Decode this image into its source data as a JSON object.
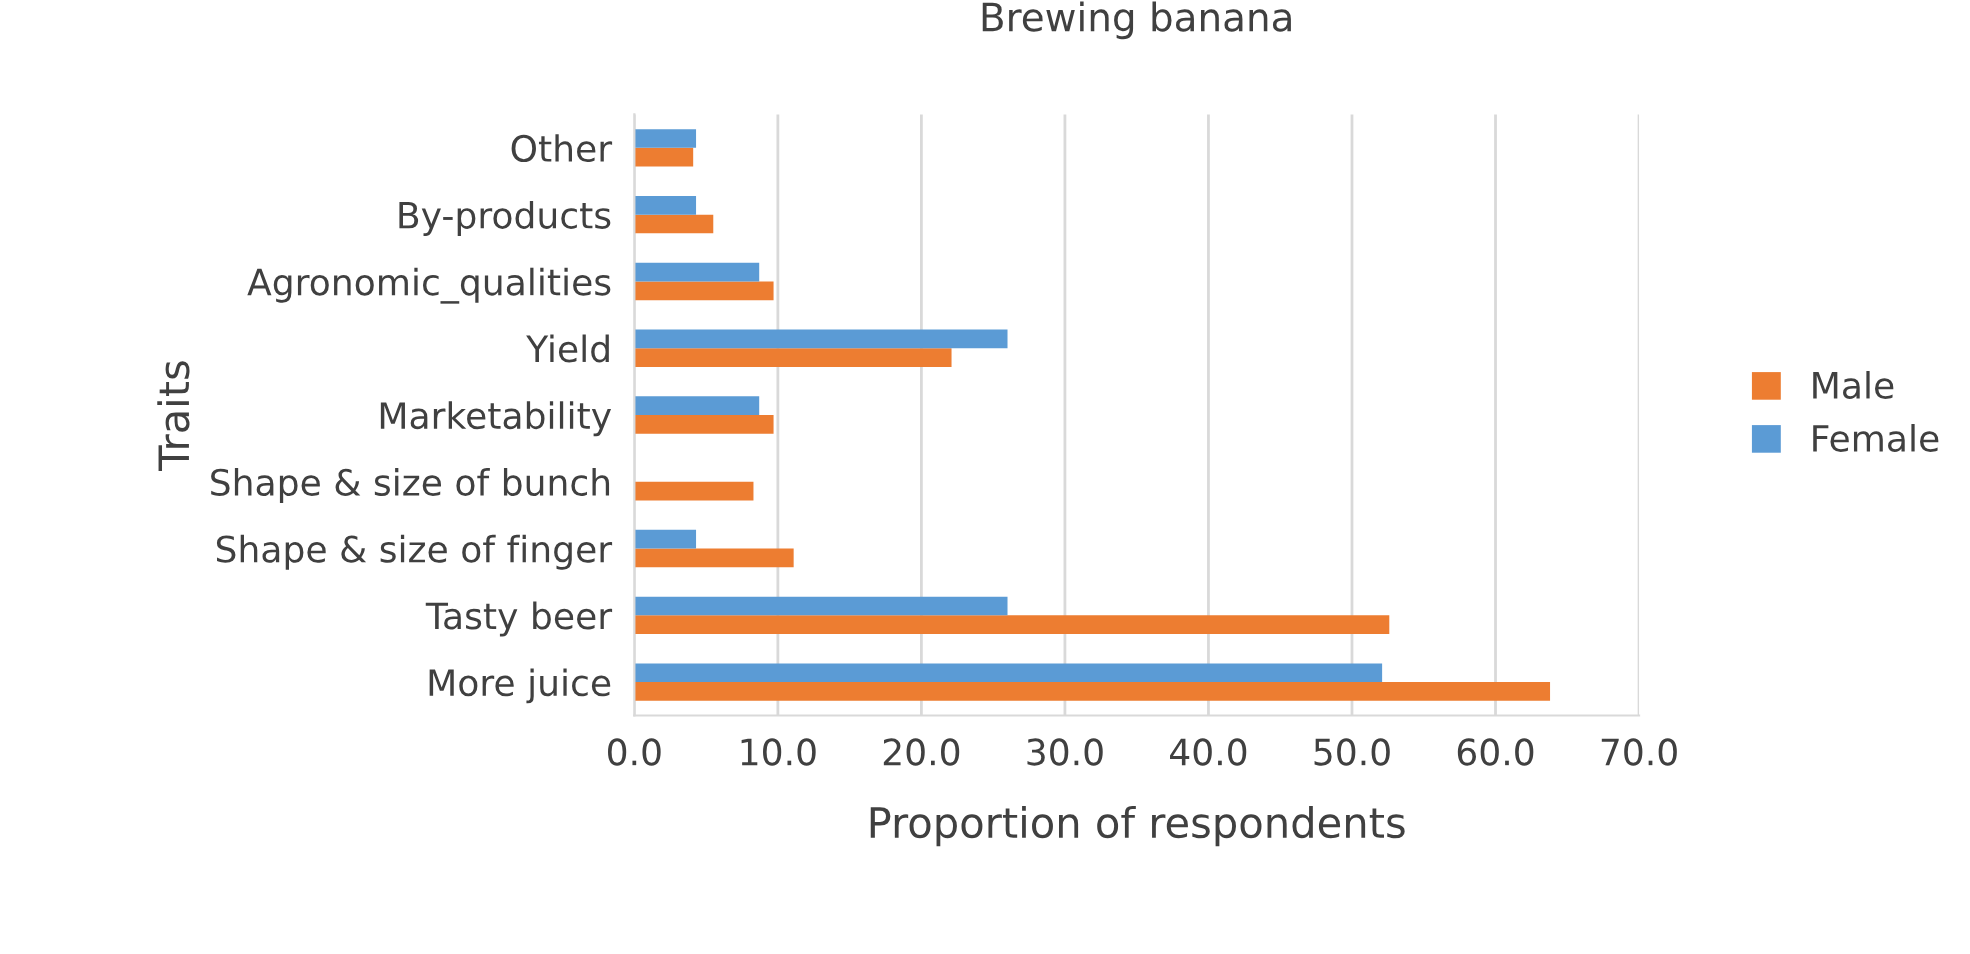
{
  "chart_data": {
    "type": "bar",
    "orientation": "horizontal",
    "title": "Brewing banana",
    "xlabel": "Proportion of respondents",
    "ylabel": "Traits",
    "categories": [
      "Other",
      "By-products",
      "Agronomic_qualities",
      "Yield",
      "Marketability",
      "Shape & size of bunch",
      "Shape & size of finger",
      "Tasty beer",
      "More juice"
    ],
    "series": [
      {
        "name": "Male",
        "color": "#ed7d31",
        "values": [
          4.1,
          5.5,
          9.7,
          22.1,
          9.7,
          8.3,
          11.1,
          52.6,
          63.8
        ]
      },
      {
        "name": "Female",
        "color": "#5b9bd5",
        "values": [
          4.3,
          4.3,
          8.7,
          26.0,
          8.7,
          0,
          4.3,
          26.0,
          52.1
        ]
      }
    ],
    "xlim": [
      0,
      70
    ],
    "xticks": [
      {
        "value": 0,
        "label": "0.0"
      },
      {
        "value": 10,
        "label": "10.0"
      },
      {
        "value": 20,
        "label": "20.0"
      },
      {
        "value": 30,
        "label": "30.0"
      },
      {
        "value": 40,
        "label": "40.0"
      },
      {
        "value": 50,
        "label": "50.0"
      },
      {
        "value": 60,
        "label": "60.0"
      },
      {
        "value": 70,
        "label": "70.0"
      }
    ],
    "grid": "x",
    "legend": "right"
  }
}
